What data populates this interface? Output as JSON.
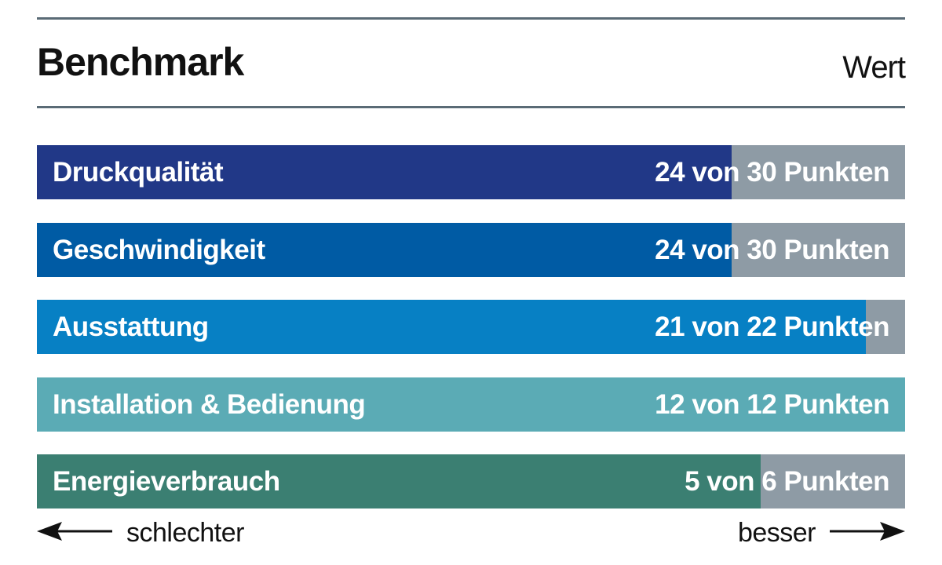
{
  "header": {
    "title": "Benchmark",
    "value_label": "Wert"
  },
  "chart_data": {
    "type": "bar",
    "orientation": "horizontal",
    "title": "Benchmark",
    "value_header": "Wert",
    "categories": [
      "Druckqualität",
      "Geschwindigkeit",
      "Ausstattung",
      "Installation & Bedienung",
      "Energieverbrauch"
    ],
    "values": [
      24,
      24,
      21,
      12,
      5
    ],
    "max_values": [
      30,
      30,
      22,
      12,
      6
    ],
    "score_labels": [
      "24 von 30 Punkten",
      "24 von 30 Punkten",
      "21 von 22 Punkten",
      "12 von 12 Punkten",
      "5 von 6 Punkten"
    ],
    "colors": [
      "#213887",
      "#005ba4",
      "#0780c4",
      "#5babb5",
      "#3b7f72"
    ],
    "remainder_color": "#8e9ba5",
    "xlabel_left": "schlechter",
    "xlabel_right": "besser",
    "grid": false,
    "legend": "none"
  },
  "footer": {
    "worse_label": "schlechter",
    "better_label": "besser",
    "left_arrow_icon": "arrow-left-icon",
    "right_arrow_icon": "arrow-right-icon"
  }
}
